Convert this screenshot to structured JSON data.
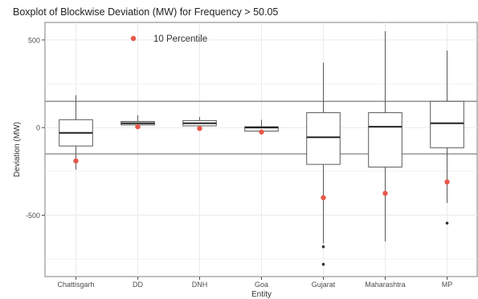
{
  "chart_data": {
    "type": "boxplot",
    "title": "Boxplot of Blockwise Deviation (MW) for Frequency > 50.05",
    "xlabel": "Entity",
    "ylabel": "Deviation (MW)",
    "ylim": [
      -850,
      600
    ],
    "y_ticks": [
      500,
      0,
      -500
    ],
    "y_tick_labels": [
      "500",
      "0",
      "-500"
    ],
    "grid": true,
    "legend": {
      "position": "top-left",
      "entries": [
        {
          "label": "10 Percentile",
          "color": "#e8584a",
          "marker": "point"
        }
      ]
    },
    "reference_lines": [
      150,
      -150
    ],
    "categories": [
      "Chattisgarh",
      "DD",
      "DNH",
      "Goa",
      "Gujarat",
      "Maharashtra",
      "MP"
    ],
    "boxes": [
      {
        "category": "Chattisgarh",
        "whisker_low": -240,
        "q1": -105,
        "median": -30,
        "q3": 45,
        "whisker_high": 185,
        "outliers": [],
        "p10": -190
      },
      {
        "category": "DD",
        "whisker_low": 15,
        "q1": 15,
        "median": 25,
        "q3": 35,
        "whisker_high": 70,
        "outliers": [],
        "p10": 5
      },
      {
        "category": "DNH",
        "whisker_low": 10,
        "q1": 10,
        "median": 25,
        "q3": 40,
        "whisker_high": 60,
        "outliers": [],
        "p10": -5
      },
      {
        "category": "Goa",
        "whisker_low": -20,
        "q1": -20,
        "median": 0,
        "q3": 5,
        "whisker_high": 45,
        "outliers": [],
        "p10": -25
      },
      {
        "category": "Gujarat",
        "whisker_low": -660,
        "q1": -210,
        "median": -55,
        "q3": 85,
        "whisker_high": 370,
        "outliers": [
          -680,
          -780
        ],
        "p10": -400
      },
      {
        "category": "Maharashtra",
        "whisker_low": -650,
        "q1": -225,
        "median": 5,
        "q3": 85,
        "whisker_high": 550,
        "outliers": [],
        "p10": -375
      },
      {
        "category": "MP",
        "whisker_low": -430,
        "q1": -115,
        "median": 25,
        "q3": 150,
        "whisker_high": 440,
        "outliers": [
          -545
        ],
        "p10": -310
      }
    ]
  },
  "colors": {
    "background": "#ffffff",
    "panel_border": "#7f7f7f",
    "grid": "#ebebeb",
    "box_stroke": "#595959",
    "reference_line": "#808080",
    "percentile_point": "#e8584a",
    "outlier": "#333333",
    "text": "#333333",
    "axis_text": "#4d4d4d"
  }
}
